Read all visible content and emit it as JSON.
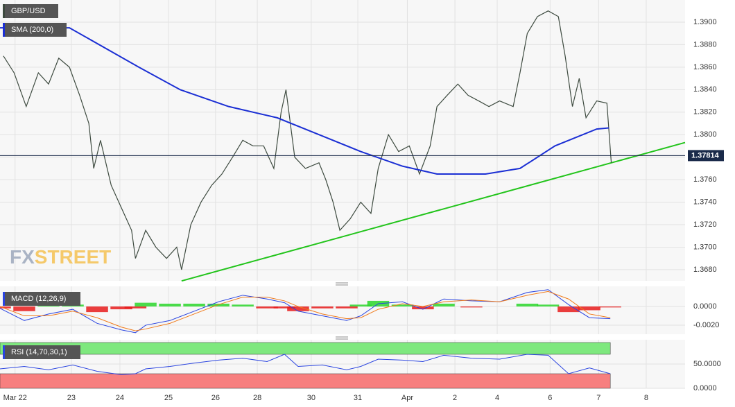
{
  "chart_data": [
    {
      "type": "line",
      "watermark": [
        "FX",
        "STREET"
      ],
      "xlim": [
        0,
        14.11
      ],
      "ylim": [
        1.36701,
        1.39197
      ],
      "yticks": [
        {
          "value": 1.368,
          "label": "1.3680"
        },
        {
          "value": 1.37,
          "label": "1.3700"
        },
        {
          "value": 1.372,
          "label": "1.3720"
        },
        {
          "value": 1.374,
          "label": "1.3740"
        },
        {
          "value": 1.376,
          "label": "1.3760"
        },
        {
          "value": 1.378,
          "label": "1.3780"
        },
        {
          "value": 1.38,
          "label": "1.3800"
        },
        {
          "value": 1.382,
          "label": "1.3820"
        },
        {
          "value": 1.384,
          "label": "1.3840"
        },
        {
          "value": 1.386,
          "label": "1.3860"
        },
        {
          "value": 1.388,
          "label": "1.3880"
        },
        {
          "value": 1.39,
          "label": "1.3900"
        }
      ],
      "grid": true,
      "series": [
        {
          "name": "GBP/USD",
          "color": "#3d4a3f",
          "x": [
            0.07,
            0.29,
            0.54,
            0.79,
            1,
            1.21,
            1.43,
            1.64,
            1.83,
            1.93,
            2.07,
            2.29,
            2.5,
            2.71,
            2.79,
            3,
            3.21,
            3.43,
            3.64,
            3.74,
            3.93,
            4.14,
            4.36,
            4.57,
            4.79,
            5,
            5.21,
            5.43,
            5.64,
            5.79,
            5.89,
            6.07,
            6.29,
            6.57,
            6.71,
            6.86,
            7,
            7.21,
            7.43,
            7.64,
            7.79,
            8,
            8.21,
            8.43,
            8.64,
            8.86,
            9,
            9.21,
            9.43,
            9.64,
            9.86,
            10.07,
            10.29,
            10.57,
            10.71,
            10.86,
            11.07,
            11.29,
            11.5,
            11.64,
            11.79,
            11.93,
            12.07,
            12.29,
            12.5,
            12.59
          ],
          "values": [
            1.387,
            1.3855,
            1.3825,
            1.3855,
            1.3845,
            1.3868,
            1.386,
            1.3835,
            1.381,
            1.377,
            1.3795,
            1.3755,
            1.3735,
            1.3715,
            1.369,
            1.3715,
            1.37,
            1.369,
            1.37,
            1.368,
            1.372,
            1.374,
            1.3755,
            1.3765,
            1.378,
            1.3795,
            1.379,
            1.379,
            1.377,
            1.382,
            1.384,
            1.378,
            1.377,
            1.3775,
            1.376,
            1.374,
            1.3715,
            1.3725,
            1.374,
            1.373,
            1.377,
            1.38,
            1.3785,
            1.379,
            1.3765,
            1.379,
            1.3825,
            1.3835,
            1.3845,
            1.3835,
            1.383,
            1.3825,
            1.383,
            1.3825,
            1.3855,
            1.389,
            1.3905,
            1.391,
            1.3905,
            1.387,
            1.3825,
            1.385,
            1.3815,
            1.383,
            1.3828,
            1.3775
          ]
        },
        {
          "name": "SMA (200,0)",
          "color": "#1b2fd4",
          "x": [
            0,
            1.43,
            2.86,
            3.71,
            4.71,
            5.71,
            6.57,
            7.43,
            8.29,
            9,
            10,
            10.71,
            11.43,
            12.29,
            12.54
          ],
          "values": [
            1.3895,
            1.3895,
            1.386,
            1.384,
            1.3825,
            1.3815,
            1.38,
            1.3785,
            1.3772,
            1.3765,
            1.3765,
            1.377,
            1.379,
            1.3805,
            1.3806
          ]
        }
      ],
      "trendline": {
        "color": "#22c41b",
        "x": [
          3.74,
          14.11
        ],
        "values": [
          1.367,
          1.3793
        ]
      },
      "last_price": {
        "value": 1.37814,
        "label": "1.37814"
      }
    },
    {
      "type": "macd",
      "title": "MACD (12,26,9)",
      "xlim": [
        0,
        14.11
      ],
      "ylim": [
        -0.00296,
        0.00215
      ],
      "yticks": [
        {
          "value": 0,
          "label": "0.0000"
        },
        {
          "value": -0.002,
          "label": "-0.0020"
        }
      ],
      "grid": true,
      "x": [
        0,
        0.5,
        1,
        1.5,
        2,
        2.5,
        2.79,
        3,
        3.5,
        4,
        4.5,
        5,
        5.5,
        5.86,
        6.14,
        6.64,
        7.14,
        7.43,
        7.79,
        8.29,
        8.71,
        9.14,
        9.71,
        10.29,
        10.86,
        11.29,
        11.71,
        12.14,
        12.57
      ],
      "series": [
        {
          "color": "#2a44e0",
          "values": [
            -0.0002,
            -0.0015,
            -0.0008,
            -0.0003,
            -0.0018,
            -0.0025,
            -0.0028,
            -0.002,
            -0.0015,
            -0.0005,
            0.0005,
            0.0012,
            0.0008,
            0.0004,
            -0.0005,
            -0.001,
            -0.0015,
            -0.001,
            0.0003,
            0.0005,
            -0.0003,
            0.0008,
            0.0006,
            0.0005,
            0.0015,
            0.0018,
            0.0002,
            -0.0012,
            -0.0013
          ]
        },
        {
          "color": "#f07a1a",
          "values": [
            0,
            -0.001,
            -0.001,
            -0.0005,
            -0.0012,
            -0.0022,
            -0.0026,
            -0.0024,
            -0.0018,
            -0.0008,
            0.0002,
            0.001,
            0.001,
            0.0006,
            0,
            -0.0008,
            -0.0013,
            -0.0012,
            -0.0003,
            0.0003,
            0,
            0.0005,
            0.0007,
            0.0005,
            0.0012,
            0.0016,
            0.0008,
            -0.0008,
            -0.0012
          ]
        }
      ],
      "histogram": {
        "up_color": "#2bd62b",
        "down_color": "#e81c1c",
        "values": [
          -0.0002,
          -0.0005,
          0.0002,
          0.0002,
          -0.0006,
          -0.0003,
          -0.0002,
          0.0004,
          0.0003,
          0.0003,
          0.0003,
          0.0002,
          -0.0002,
          -0.0002,
          -0.0005,
          -0.0002,
          -0.0002,
          0.0002,
          0.0006,
          0.0002,
          -0.0003,
          0.0003,
          -0.0001,
          0,
          0.0003,
          0.0002,
          -0.0006,
          -0.0004,
          -0.0001
        ]
      }
    },
    {
      "type": "rsi",
      "title": "RSI (14,70,30,1)",
      "xlim": [
        0,
        14.11
      ],
      "ylim": [
        0,
        100
      ],
      "yticks": [
        {
          "value": 50,
          "label": "50.0000"
        },
        {
          "value": 0,
          "label": "0.0000"
        }
      ],
      "xticks": [
        {
          "value": 0.31,
          "label": "Mar 22"
        },
        {
          "value": 1.47,
          "label": "23"
        },
        {
          "value": 2.47,
          "label": "24"
        },
        {
          "value": 3.47,
          "label": "25"
        },
        {
          "value": 4.44,
          "label": "26"
        },
        {
          "value": 5.3,
          "label": "28"
        },
        {
          "value": 6.41,
          "label": "30"
        },
        {
          "value": 7.37,
          "label": "31"
        },
        {
          "value": 8.39,
          "label": "Apr"
        },
        {
          "value": 9.37,
          "label": "2"
        },
        {
          "value": 10.24,
          "label": "4"
        },
        {
          "value": 11.33,
          "label": "6"
        },
        {
          "value": 12.33,
          "label": "7"
        },
        {
          "value": 13.31,
          "label": "8"
        }
      ],
      "grid": true,
      "x": [
        0,
        0.5,
        1,
        1.5,
        2,
        2.5,
        2.79,
        3,
        3.5,
        4,
        4.5,
        5,
        5.5,
        5.86,
        6.14,
        6.64,
        7.14,
        7.43,
        7.79,
        8.29,
        8.71,
        9.14,
        9.71,
        10.29,
        10.86,
        11.29,
        11.71,
        12.14,
        12.57
      ],
      "color": "#2a44e0",
      "values": [
        40,
        45,
        38,
        48,
        35,
        28,
        30,
        40,
        45,
        52,
        58,
        62,
        55,
        70,
        45,
        48,
        38,
        45,
        60,
        58,
        55,
        68,
        62,
        60,
        70,
        68,
        30,
        42,
        30
      ],
      "overbought": 70,
      "oversold": 30,
      "overbought_color": "#7ee87e",
      "oversold_color": "#f77f7f"
    }
  ]
}
